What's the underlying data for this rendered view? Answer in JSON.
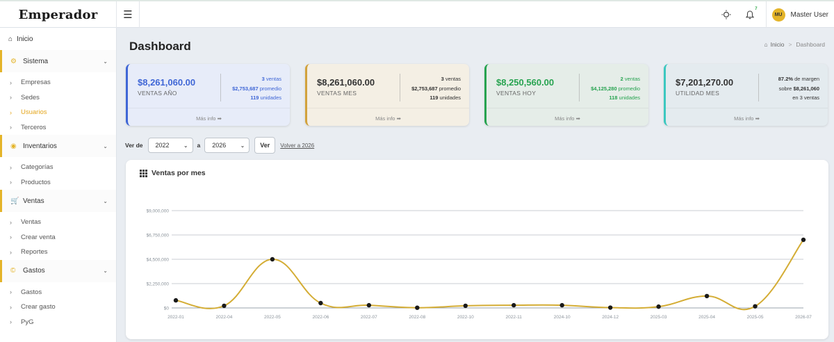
{
  "brand": {
    "name": "Emperador"
  },
  "header": {
    "user_initials": "MU",
    "user_name": "Master User",
    "notification_count": "7"
  },
  "sidebar": {
    "home": "Inicio",
    "sections": [
      {
        "label": "Sistema",
        "icon": "gears-icon",
        "items": [
          "Empresas",
          "Sedes",
          "Usuarios",
          "Terceros"
        ]
      },
      {
        "label": "Inventarios",
        "icon": "coin-icon",
        "items": [
          "Categorías",
          "Productos"
        ]
      },
      {
        "label": "Ventas",
        "icon": "cart-icon",
        "items": [
          "Ventas",
          "Crear venta",
          "Reportes"
        ]
      },
      {
        "label": "Gastos",
        "icon": "copyright-icon",
        "items": [
          "Gastos",
          "Crear gasto",
          "PyG"
        ]
      }
    ],
    "active_item": "Usuarios"
  },
  "page": {
    "title": "Dashboard",
    "breadcrumb_home": "Inicio",
    "breadcrumb_sep": ">",
    "breadcrumb_current": "Dashboard"
  },
  "cards": [
    {
      "value": "$8,261,060.00",
      "label": "VENTAS AÑO",
      "line1_num": "3",
      "line1_text": " ventas",
      "line2_num": "$2,753,687",
      "line2_text": " promedio",
      "line3_num": "119",
      "line3_text": " unidades",
      "more": "Más info",
      "color": "#3f66d6"
    },
    {
      "value": "$8,261,060.00",
      "label": "VENTAS MES",
      "line1_num": "3",
      "line1_text": " ventas",
      "line2_num": "$2,753,687",
      "line2_text": " promedio",
      "line3_num": "119",
      "line3_text": " unidades",
      "more": "Más info",
      "color": "#d2a23c"
    },
    {
      "value": "$8,250,560.00",
      "label": "VENTAS HOY",
      "line1_num": "2",
      "line1_text": " ventas",
      "line2_num": "$4,125,280",
      "line2_text": " promedio",
      "line3_num": "118",
      "line3_text": " unidades",
      "more": "Más info",
      "color": "#27a350"
    },
    {
      "value": "$7,201,270.00",
      "label": "UTILIDAD MES",
      "line1_num": "87.2%",
      "line1_text": " de margen",
      "line2_pre": "sobre ",
      "line2_num": "$8,261,060",
      "line3_text": "en 3 ventas",
      "more": "Más info",
      "color": "#3cc8c0"
    }
  ],
  "filter": {
    "from_label": "Ver de",
    "from_value": "2022",
    "to_label": "a",
    "to_value": "2026",
    "submit_label": "Ver",
    "reset_link": "Volver a 2026"
  },
  "chart_data": {
    "type": "line",
    "title": "Ventas por mes",
    "categories": [
      "2022-01",
      "2022-04",
      "2022-05",
      "2022-06",
      "2022-07",
      "2022-08",
      "2022-10",
      "2022-11",
      "2024-10",
      "2024-12",
      "2025-03",
      "2025-04",
      "2025-05",
      "2026-07"
    ],
    "values": [
      700000,
      200000,
      4500000,
      450000,
      250000,
      20000,
      200000,
      250000,
      250000,
      30000,
      120000,
      1100000,
      150000,
      6300000
    ],
    "ylim": [
      0,
      6750000
    ],
    "yticks": [
      0,
      2250000,
      4500000,
      6750000,
      9000000
    ],
    "ytick_labels": [
      "$0",
      "$2,250,000",
      "$4,500,000",
      "$6,750,000",
      "$9,000,000"
    ],
    "line_color": "#d4ad35",
    "point_color": "#1a1a1a",
    "grid": true
  }
}
